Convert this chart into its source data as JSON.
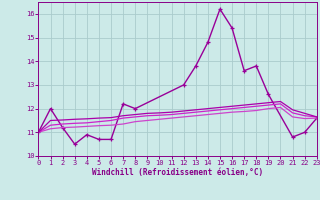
{
  "xlabel": "Windchill (Refroidissement éolien,°C)",
  "background_color": "#cceae8",
  "grid_color": "#aacccc",
  "xmin": 0,
  "xmax": 23,
  "ymin": 10,
  "ymax": 16.5,
  "x_ticks": [
    0,
    1,
    2,
    3,
    4,
    5,
    6,
    7,
    8,
    9,
    10,
    11,
    12,
    13,
    14,
    15,
    16,
    17,
    18,
    19,
    20,
    21,
    22,
    23
  ],
  "y_ticks": [
    10,
    11,
    12,
    13,
    14,
    15,
    16
  ],
  "lines": [
    {
      "x": [
        0,
        1,
        2,
        3,
        4,
        5,
        6,
        7,
        8,
        12,
        13,
        14,
        15,
        16,
        17,
        18,
        19,
        21,
        22,
        23
      ],
      "y": [
        11.0,
        12.0,
        11.2,
        10.5,
        10.9,
        10.7,
        10.7,
        12.2,
        12.0,
        13.0,
        13.8,
        14.8,
        16.2,
        15.4,
        13.6,
        13.8,
        12.6,
        10.8,
        11.0,
        11.6
      ],
      "color": "#990099",
      "linewidth": 1.0,
      "marker": "+"
    },
    {
      "x": [
        0,
        1,
        2,
        3,
        4,
        5,
        6,
        7,
        8,
        9,
        10,
        11,
        12,
        13,
        14,
        15,
        16,
        17,
        18,
        19,
        20,
        21,
        22,
        23
      ],
      "y": [
        11.0,
        11.15,
        11.2,
        11.22,
        11.25,
        11.28,
        11.3,
        11.35,
        11.45,
        11.5,
        11.55,
        11.6,
        11.65,
        11.7,
        11.75,
        11.8,
        11.85,
        11.88,
        11.92,
        12.0,
        12.05,
        11.65,
        11.58,
        11.6
      ],
      "color": "#cc44cc",
      "linewidth": 0.9,
      "marker": null
    },
    {
      "x": [
        0,
        1,
        2,
        3,
        4,
        5,
        6,
        7,
        8,
        9,
        10,
        11,
        12,
        13,
        14,
        15,
        16,
        17,
        18,
        19,
        20,
        21,
        22,
        23
      ],
      "y": [
        11.0,
        11.3,
        11.35,
        11.38,
        11.4,
        11.45,
        11.5,
        11.6,
        11.65,
        11.7,
        11.72,
        11.75,
        11.8,
        11.85,
        11.9,
        11.95,
        12.0,
        12.05,
        12.1,
        12.15,
        12.2,
        11.82,
        11.7,
        11.65
      ],
      "color": "#cc22cc",
      "linewidth": 0.9,
      "marker": null
    },
    {
      "x": [
        0,
        1,
        2,
        3,
        4,
        5,
        6,
        7,
        8,
        9,
        10,
        11,
        12,
        13,
        14,
        15,
        16,
        17,
        18,
        19,
        20,
        21,
        22,
        23
      ],
      "y": [
        11.0,
        11.5,
        11.52,
        11.55,
        11.57,
        11.6,
        11.62,
        11.7,
        11.75,
        11.8,
        11.82,
        11.85,
        11.9,
        11.95,
        12.0,
        12.05,
        12.1,
        12.15,
        12.2,
        12.25,
        12.3,
        11.95,
        11.8,
        11.65
      ],
      "color": "#aa00aa",
      "linewidth": 0.9,
      "marker": null
    }
  ]
}
